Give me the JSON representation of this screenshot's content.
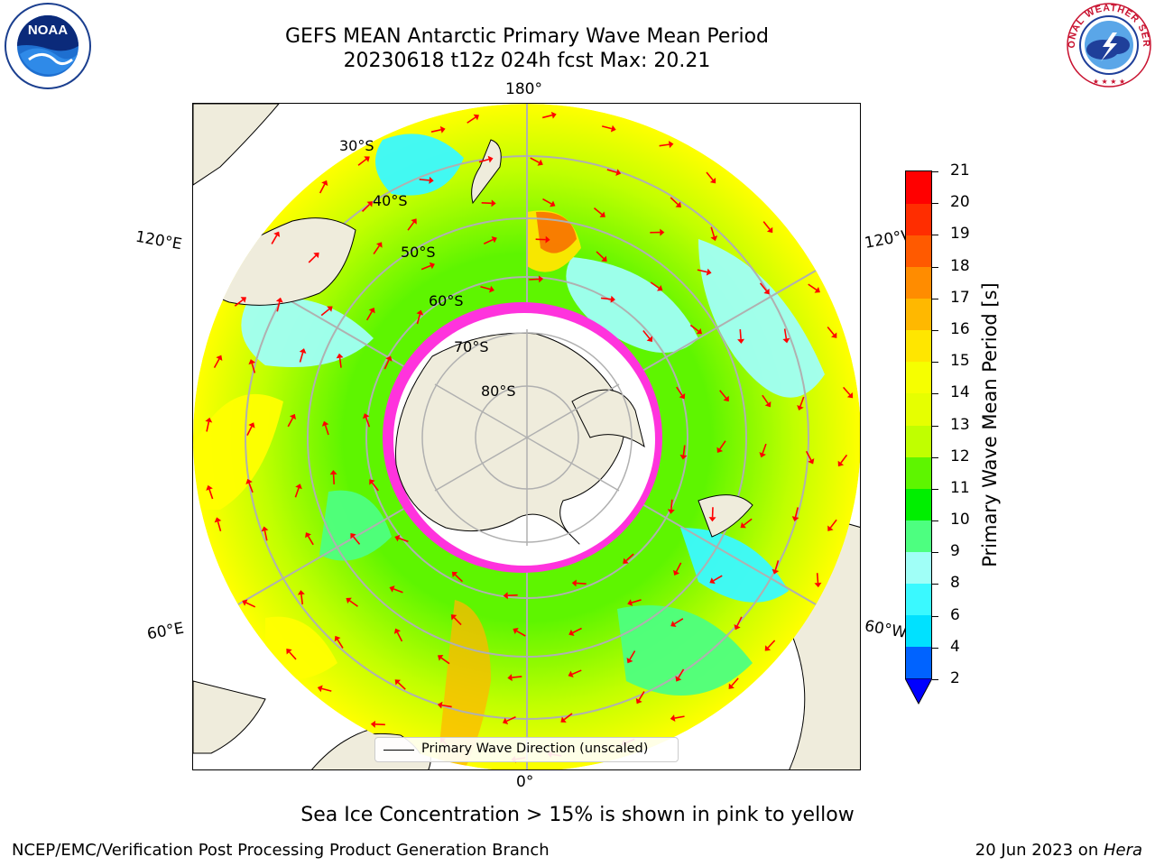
{
  "title_line1": "GEFS MEAN Antarctic Primary Wave Mean Period",
  "title_line2": "20230618 t12z 024h fcst   Max: 20.21",
  "lon_labels": {
    "top": "180°",
    "bottom": "0°",
    "left_upper": "120°E",
    "left_lower": "60°E",
    "right_upper": "120°W",
    "right_lower": "60°W"
  },
  "lat_labels": [
    "30°S",
    "40°S",
    "50°S",
    "60°S",
    "70°S",
    "80°S"
  ],
  "legend_text": "Primary Wave Direction (unscaled)",
  "colorbar": {
    "label": "Primary Wave Mean Period [s]",
    "ticks": [
      "2",
      "4",
      "6",
      "8",
      "9",
      "10",
      "11",
      "12",
      "13",
      "14",
      "15",
      "16",
      "17",
      "18",
      "19",
      "20",
      "21"
    ],
    "colors": [
      "#0063ff",
      "#00e1ff",
      "#3af9ff",
      "#a0fff7",
      "#4dff80",
      "#00ef00",
      "#5ef500",
      "#c0ff00",
      "#e6ff00",
      "#f6ff00",
      "#ffe600",
      "#ffb800",
      "#ff8c00",
      "#ff5a00",
      "#ff2d00",
      "#ff0000"
    ],
    "extend_color": "#0000ff"
  },
  "note": "Sea Ice Concentration > 15% is shown in pink to yellow",
  "footer_left": "NCEP/EMC/Verification Post Processing Product Generation Branch",
  "footer_date": "20 Jun 2023 on ",
  "footer_host": "Hera",
  "logos": {
    "left": "NOAA",
    "right_text": "NATIONAL WEATHER SERVICE"
  },
  "map_colors": {
    "land": "#efecdc",
    "ocean_base": "#c8ff00",
    "ice": "#ffffff",
    "ice_edge": "#ff33dd",
    "arrow": "#ff0000",
    "grid": "#b0b0b0"
  }
}
